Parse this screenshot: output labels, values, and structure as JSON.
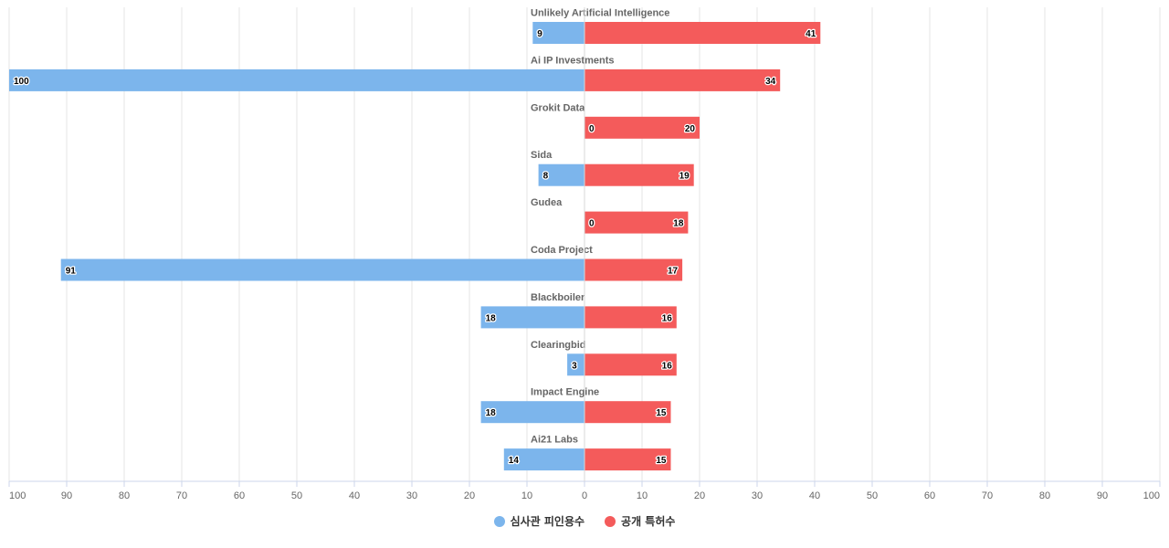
{
  "chart_data": {
    "type": "bar",
    "orientation": "horizontal-diverging",
    "categories": [
      "Unlikely Artificial Intelligence",
      "Ai IP Investments",
      "Grokit Data",
      "Sida",
      "Gudea",
      "Coda Project",
      "Blackboiler",
      "Clearingbid",
      "Impact Engine",
      "Ai21 Labs"
    ],
    "series": [
      {
        "name": "심사관 피인용수",
        "side": "left",
        "color": "#7cb5ec",
        "values": [
          9,
          100,
          0,
          8,
          0,
          91,
          18,
          3,
          18,
          14
        ]
      },
      {
        "name": "공개 특허수",
        "side": "right",
        "color": "#f45b5b",
        "values": [
          41,
          34,
          20,
          19,
          18,
          17,
          16,
          16,
          15,
          15
        ]
      }
    ],
    "xlim": [
      -100,
      100
    ],
    "x_ticks": [
      -100,
      -90,
      -80,
      -70,
      -60,
      -50,
      -40,
      -30,
      -20,
      -10,
      0,
      10,
      20,
      30,
      40,
      50,
      60,
      70,
      80,
      90,
      100
    ],
    "x_tick_labels": [
      "100",
      "90",
      "80",
      "70",
      "60",
      "50",
      "40",
      "30",
      "20",
      "10",
      "0",
      "10",
      "20",
      "30",
      "40",
      "50",
      "60",
      "70",
      "80",
      "90",
      "100"
    ],
    "grid": true,
    "legend_position": "bottom-center"
  }
}
